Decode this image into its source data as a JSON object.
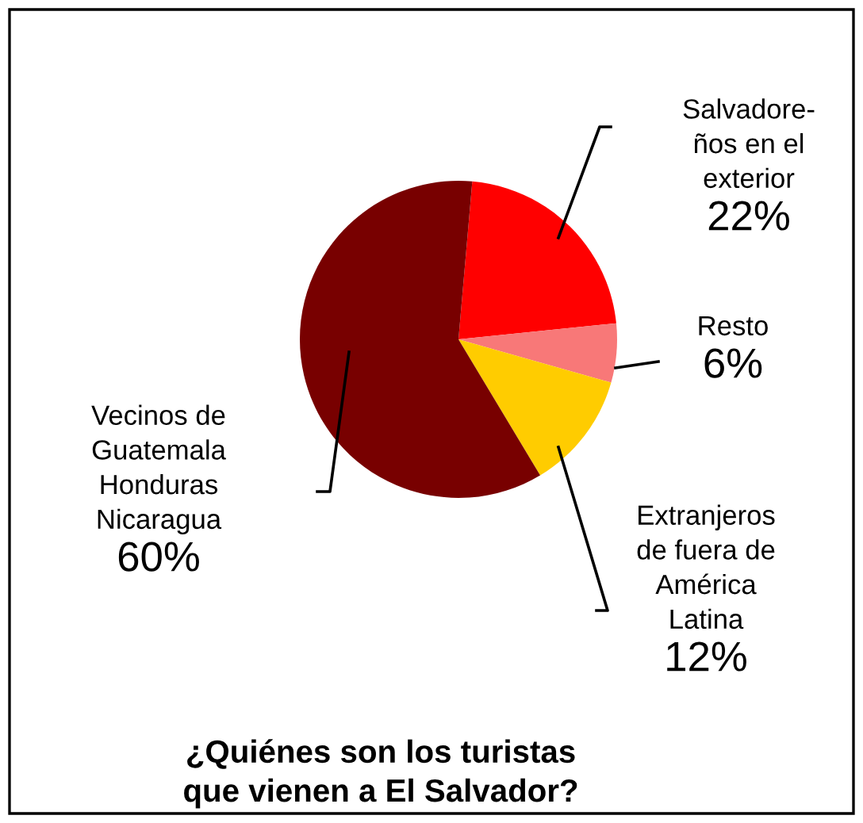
{
  "chart_data": {
    "type": "pie",
    "title": "¿Quiénes son los turistas\nque vienen a El Salvador?",
    "categories": [
      "Salvadore-\nños en el\nexterior",
      "Resto",
      "Extranjeros\nde fuera de\nAmérica\nLatina",
      "Vecinos de\nGuatemala\nHonduras\nNicaragua"
    ],
    "values": [
      22,
      6,
      12,
      60
    ],
    "colors": [
      "#ff0000",
      "#f87878",
      "#ffcc00",
      "#780000"
    ],
    "value_labels": [
      "22%",
      "6%",
      "12%",
      "60%"
    ]
  }
}
